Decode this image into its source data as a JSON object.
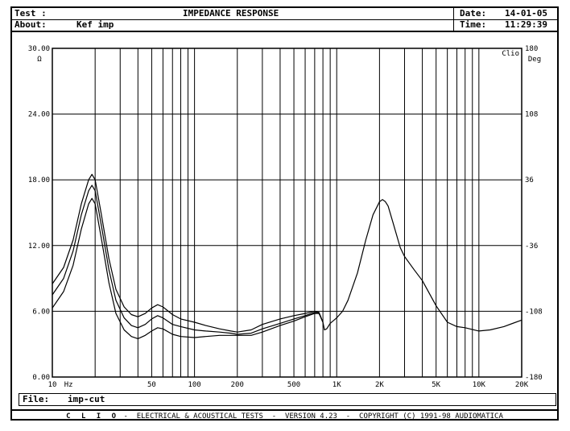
{
  "header": {
    "test_label": "Test :",
    "about_label": "About:",
    "about_value": "Kef imp",
    "title": "IMPEDANCE RESPONSE",
    "date_label": "Date:",
    "date_value": "14-01-05",
    "time_label": "Time:",
    "time_value": "11:29:39"
  },
  "file": {
    "label": "File:",
    "value": "imp-cut"
  },
  "footer": {
    "brand": "C L I O",
    "text": " -  ELECTRICAL & ACOUSTICAL TESTS  -  VERSION 4.23  -  COPYRIGHT (C) 1991-98 AUDIOMATICA"
  },
  "chart_data": {
    "type": "line",
    "x_scale": "log",
    "xlim": [
      10,
      20000
    ],
    "ylim": [
      0,
      30
    ],
    "y2lim": [
      -180,
      180
    ],
    "ylabel": "Ω",
    "y2label": "Deg",
    "xunit": "Hz",
    "watermark": "Clio",
    "grid": true,
    "y_ticks": [
      "0.00",
      "6.00",
      "12.00",
      "18.00",
      "24.00",
      "30.00"
    ],
    "y2_ticks": [
      "-180",
      "-108",
      "-36",
      "36",
      "108",
      "180"
    ],
    "x_ticks": [
      {
        "value": 10,
        "label": "10"
      },
      {
        "value": 50,
        "label": "50"
      },
      {
        "value": 100,
        "label": "100"
      },
      {
        "value": 200,
        "label": "200"
      },
      {
        "value": 500,
        "label": "500"
      },
      {
        "value": 1000,
        "label": "1K"
      },
      {
        "value": 2000,
        "label": "2K"
      },
      {
        "value": 5000,
        "label": "5K"
      },
      {
        "value": 10000,
        "label": "10K"
      },
      {
        "value": 20000,
        "label": "20K"
      }
    ],
    "series": [
      {
        "x": [
          10,
          12,
          14,
          16,
          18,
          19,
          20,
          22,
          25,
          28,
          32,
          36,
          40,
          45,
          50,
          55,
          60,
          70,
          80,
          100,
          120,
          150,
          180,
          200,
          250,
          300,
          400,
          500,
          600,
          700,
          750,
          800
        ],
        "y": [
          8.5,
          10.0,
          12.5,
          15.8,
          18.0,
          18.5,
          18.0,
          15.0,
          10.8,
          8.0,
          6.4,
          5.7,
          5.5,
          5.8,
          6.3,
          6.6,
          6.4,
          5.7,
          5.3,
          5.0,
          4.7,
          4.4,
          4.2,
          4.1,
          4.3,
          4.8,
          5.3,
          5.6,
          5.8,
          6.0,
          5.9,
          5.0
        ]
      },
      {
        "x": [
          10,
          12,
          14,
          16,
          18,
          19,
          20,
          22,
          25,
          28,
          32,
          36,
          40,
          45,
          50,
          55,
          60,
          70,
          80,
          100,
          120,
          150,
          180,
          200,
          250,
          300,
          400,
          500,
          600,
          700,
          750,
          800
        ],
        "y": [
          7.5,
          9.0,
          11.5,
          14.8,
          17.0,
          17.5,
          17.0,
          14.0,
          9.8,
          7.0,
          5.4,
          4.7,
          4.5,
          4.8,
          5.3,
          5.6,
          5.4,
          4.8,
          4.6,
          4.3,
          4.2,
          4.1,
          4.0,
          3.9,
          4.0,
          4.4,
          4.9,
          5.3,
          5.6,
          5.9,
          5.9,
          5.0
        ]
      },
      {
        "x": [
          10,
          12,
          14,
          16,
          18,
          19,
          20,
          22,
          25,
          28,
          32,
          36,
          40,
          45,
          50,
          55,
          60,
          70,
          80,
          100,
          120,
          150,
          180,
          200,
          250,
          300,
          400,
          500,
          600,
          700,
          750,
          800
        ],
        "y": [
          6.3,
          7.8,
          10.2,
          13.5,
          15.8,
          16.3,
          15.8,
          12.8,
          8.6,
          5.8,
          4.3,
          3.7,
          3.5,
          3.8,
          4.2,
          4.5,
          4.4,
          3.9,
          3.7,
          3.6,
          3.7,
          3.8,
          3.8,
          3.8,
          3.8,
          4.1,
          4.7,
          5.1,
          5.5,
          5.8,
          5.8,
          5.0
        ]
      },
      {
        "x": [
          800,
          820,
          850,
          900,
          1000,
          1100,
          1200,
          1400,
          1600,
          1800,
          2000,
          2100,
          2200,
          2300,
          2500,
          2800,
          3000,
          3500,
          4000,
          5000,
          6000,
          7000,
          8000,
          10000,
          12000,
          15000,
          20000
        ],
        "y": [
          5.0,
          4.3,
          4.4,
          4.9,
          5.4,
          6.0,
          7.0,
          9.5,
          12.5,
          14.8,
          16.0,
          16.2,
          16.0,
          15.6,
          14.0,
          11.8,
          11.0,
          9.8,
          8.8,
          6.5,
          5.0,
          4.6,
          4.5,
          4.2,
          4.3,
          4.6,
          5.2
        ]
      }
    ]
  }
}
